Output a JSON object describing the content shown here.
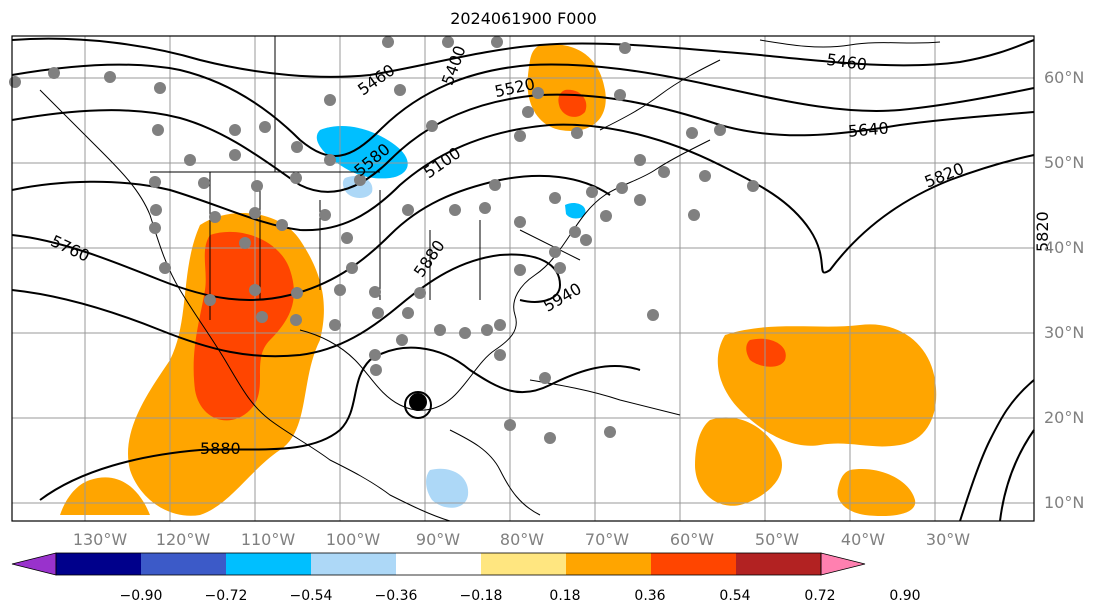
{
  "title": "2024061900 F000",
  "lat_labels": [
    "60°N",
    "50°N",
    "40°N",
    "30°N",
    "20°N",
    "10°N"
  ],
  "lon_labels": [
    "130°W",
    "120°W",
    "110°W",
    "100°W",
    "90°W",
    "80°W",
    "70°W",
    "60°W",
    "50°W",
    "40°W",
    "30°W"
  ],
  "contour_labels": [
    "5460",
    "5400",
    "5520",
    "5460",
    "5580",
    "5100",
    "5640",
    "5820",
    "5880",
    "5760",
    "5820",
    "5940",
    "5880"
  ],
  "colorbar": {
    "ticks": [
      "−0.90",
      "−0.72",
      "−0.54",
      "−0.36",
      "−0.18",
      "0.18",
      "0.36",
      "0.54",
      "0.72",
      "0.90"
    ],
    "colors": [
      "#9932cc",
      "#00008b",
      "#3c5ac8",
      "#00bfff",
      "#add8f7",
      "#ffffff",
      "#ffe680",
      "#ffa500",
      "#ff4500",
      "#b22222",
      "#ff80b0"
    ]
  }
}
